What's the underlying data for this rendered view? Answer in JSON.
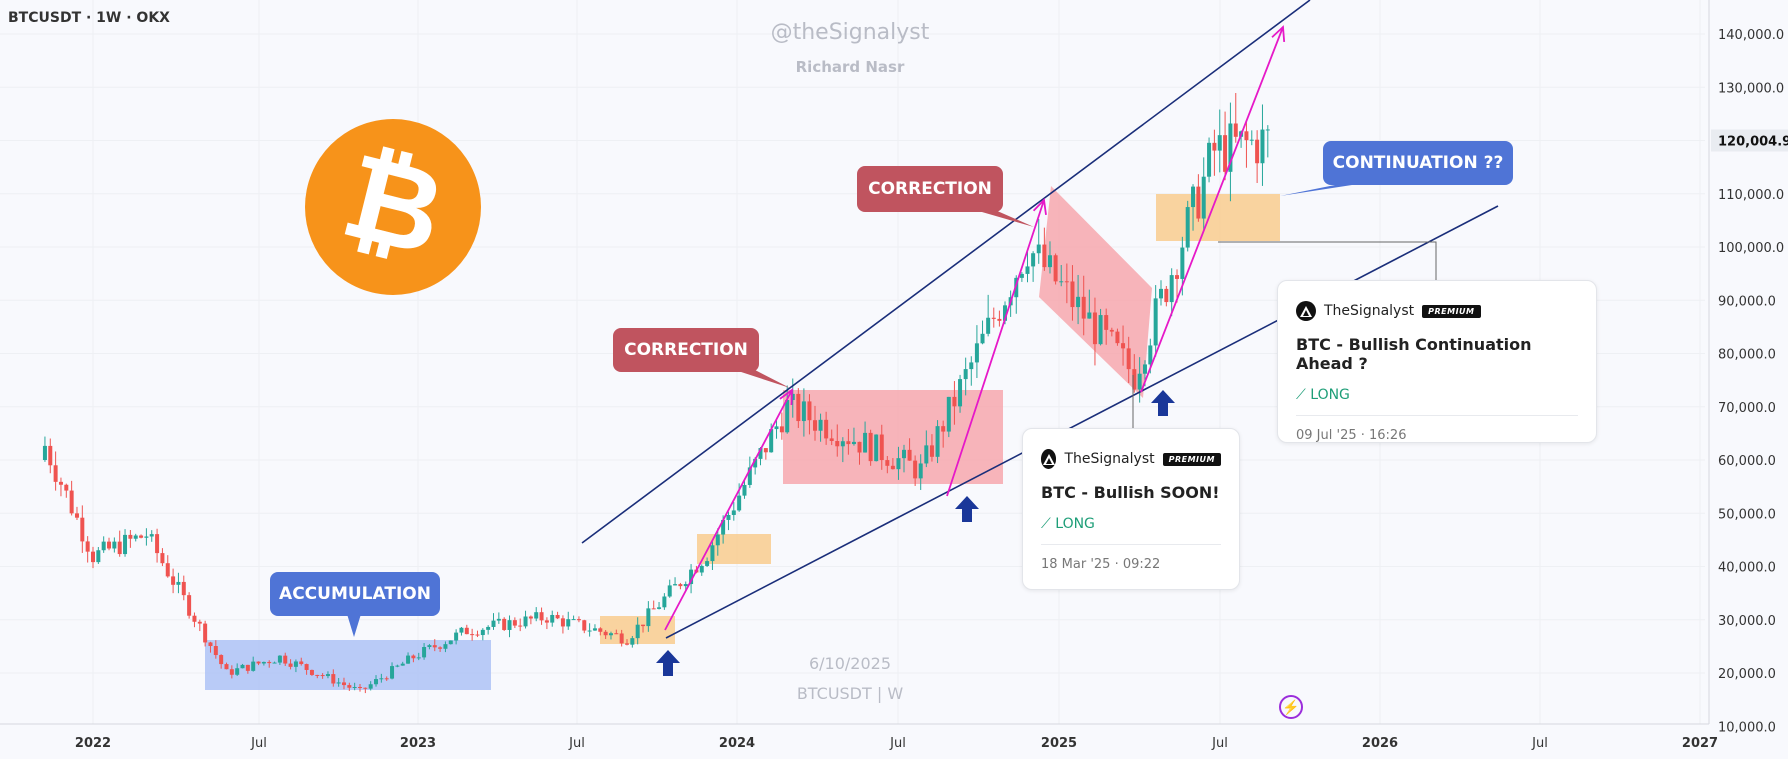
{
  "header": {
    "symbol": "BTCUSDT · 1W · OKX"
  },
  "watermark": {
    "handle": "@theSignalyst",
    "author": "Richard Nasr",
    "date": "6/10/2025",
    "symbol": "BTCUSDT | W"
  },
  "price_scale": {
    "last_price": "120,004.9"
  },
  "annotations": {
    "accumulation": "ACCUMULATION",
    "correction_1": "CORRECTION",
    "correction_2": "CORRECTION",
    "continuation": "CONTINUATION ??"
  },
  "ideas": [
    {
      "author": "TheSignalyst",
      "badge": "PREMIUM",
      "title": "BTC - Bullish SOON!",
      "direction": "LONG",
      "timestamp": "18 Mar '25 · 09:22"
    },
    {
      "author": "TheSignalyst",
      "badge": "PREMIUM",
      "title": "BTC - Bullish Continuation Ahead ?",
      "direction": "LONG",
      "timestamp": "09 Jul '25 · 16:26"
    }
  ],
  "colors": {
    "up": "#26a69a",
    "down": "#ef5350",
    "channel": "#1a2e7a",
    "impulse": "#e619c8",
    "accumulation_zone": "#a9bff5",
    "demand_zone": "#f9cc8e",
    "correction_zone": "#f6a3a9",
    "callout_blue": "#4f74d6",
    "callout_red": "#c0545f",
    "arrow_blue": "#1a3799",
    "bitcoin": "#f7931a"
  },
  "icons": [
    "bitcoin-logo",
    "up-arrow-icon",
    "trend-up-icon",
    "bolt-icon"
  ],
  "chart_data": {
    "type": "candlestick",
    "title": "BTCUSDT · 1W · OKX",
    "x_ticks": [
      "2022",
      "Jul",
      "2023",
      "Jul",
      "2024",
      "Jul",
      "2025",
      "Jul",
      "2026",
      "Jul",
      "2027"
    ],
    "y_ticks": [
      "140,000.0",
      "130,000.0",
      "120,000.0",
      "110,000.0",
      "100,000.0",
      "90,000.0",
      "80,000.0",
      "70,000.0",
      "60,000.0",
      "50,000.0",
      "40,000.0",
      "30,000.0",
      "20,000.0",
      "10,000.0"
    ],
    "ylim": [
      10000,
      146000
    ],
    "last_price": 120004.9,
    "approx_weekly_closes": [
      {
        "date": "2021-11",
        "close": 65000
      },
      {
        "date": "2022-01",
        "close": 42000
      },
      {
        "date": "2022-03",
        "close": 46000
      },
      {
        "date": "2022-06",
        "close": 20000
      },
      {
        "date": "2022-08",
        "close": 23000
      },
      {
        "date": "2022-11",
        "close": 16500
      },
      {
        "date": "2023-01",
        "close": 23000
      },
      {
        "date": "2023-03",
        "close": 28000
      },
      {
        "date": "2023-06",
        "close": 30500
      },
      {
        "date": "2023-09",
        "close": 26500
      },
      {
        "date": "2023-12",
        "close": 42500
      },
      {
        "date": "2024-03",
        "close": 70000
      },
      {
        "date": "2024-08",
        "close": 58000
      },
      {
        "date": "2024-12",
        "close": 100000
      },
      {
        "date": "2025-04",
        "close": 76000
      },
      {
        "date": "2025-07",
        "close": 118000
      },
      {
        "date": "2025-09",
        "close": 120004.9
      }
    ],
    "zones": [
      {
        "label": "ACCUMULATION",
        "from": "2022-06",
        "to": "2023-03",
        "low": 16000,
        "high": 27000
      },
      {
        "label": "CORRECTION",
        "from": "2024-03",
        "to": "2024-11",
        "low": 54000,
        "high": 73000
      },
      {
        "label": "CORRECTION",
        "from": "2024-12",
        "to": "2025-04",
        "low": 74000,
        "high": 109000
      }
    ],
    "channel": {
      "upper": [
        [
          "2023-09",
          44000
        ],
        [
          "2025-11",
          146000
        ]
      ],
      "lower": [
        [
          "2023-10",
          27000
        ],
        [
          "2026-04",
          107000
        ]
      ]
    },
    "impulse_target": 141000
  }
}
